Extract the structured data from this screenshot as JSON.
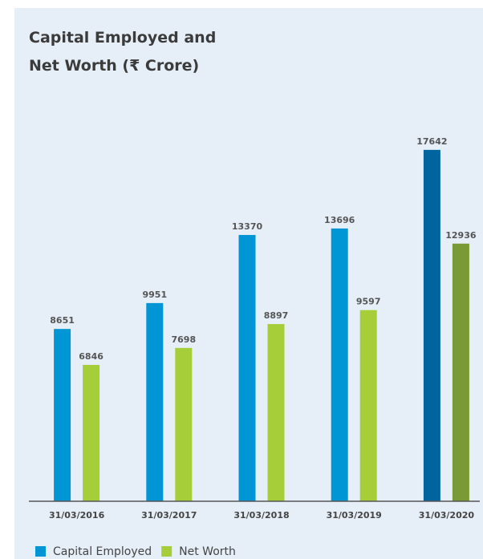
{
  "chart_data": {
    "type": "bar",
    "title": "Capital Employed and Net Worth (₹ Crore)",
    "categories": [
      "31/03/2016",
      "31/03/2017",
      "31/03/2018",
      "31/03/2019",
      "31/03/2020"
    ],
    "series": [
      {
        "name": "Capital Employed",
        "color": "#0096d6",
        "colors": [
          "#0096d6",
          "#0096d6",
          "#0096d6",
          "#0096d6",
          "#00659e"
        ],
        "values": [
          8651,
          9951,
          13370,
          13696,
          17642
        ]
      },
      {
        "name": "Net Worth",
        "color": "#a6ce39",
        "colors": [
          "#a6ce39",
          "#a6ce39",
          "#a6ce39",
          "#a6ce39",
          "#7a9a35"
        ],
        "values": [
          6846,
          7698,
          8897,
          9597,
          12936
        ]
      }
    ],
    "ylim": [
      0,
      18000
    ],
    "legend": "bottom-left"
  }
}
